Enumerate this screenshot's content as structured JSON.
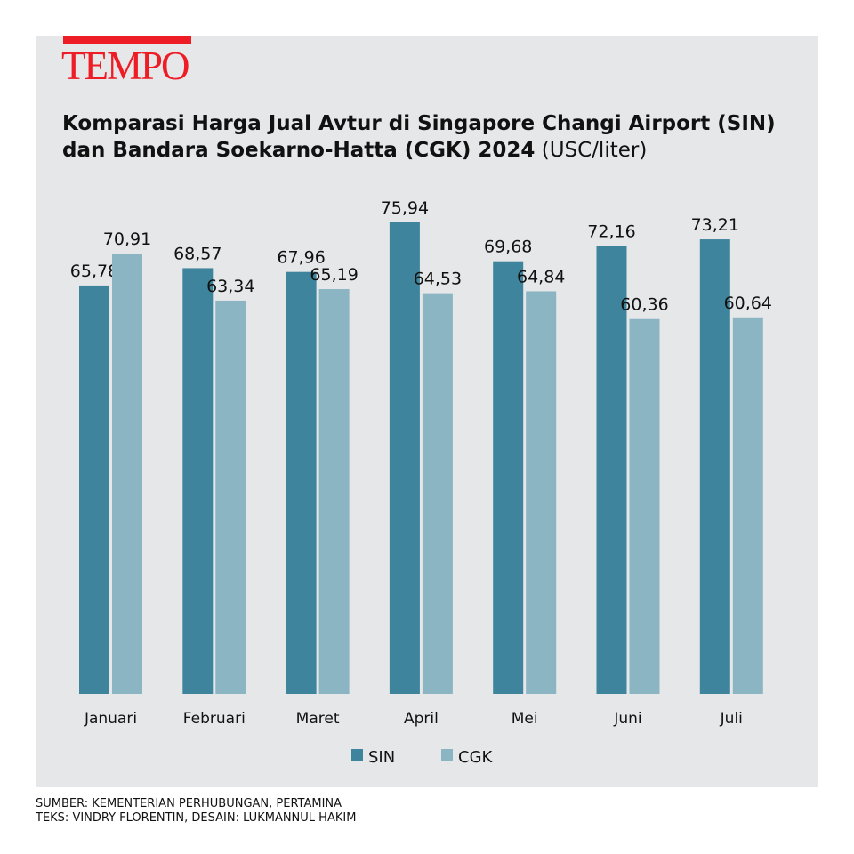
{
  "logo": "TEMPO",
  "title": {
    "main": "Komparasi Harga Jual Avtur di Singapore Changi Airport (SIN) dan Bandara Soekarno-Hatta (CGK) 2024",
    "unit": "(USC/liter)"
  },
  "chart_data": {
    "type": "bar",
    "title": "Komparasi Harga Jual Avtur di Singapore Changi Airport (SIN) dan Bandara Soekarno-Hatta (CGK) 2024 (USC/liter)",
    "categories": [
      "Januari",
      "Februari",
      "Maret",
      "April",
      "Mei",
      "Juni",
      "Juli"
    ],
    "series": [
      {
        "name": "SIN",
        "color": "#3e849c",
        "values": [
          65.78,
          68.57,
          67.96,
          75.94,
          69.68,
          72.16,
          73.21
        ],
        "labels": [
          "65,78",
          "68,57",
          "67,96",
          "75,94",
          "69,68",
          "72,16",
          "73,21"
        ]
      },
      {
        "name": "CGK",
        "color": "#8cb5c3",
        "values": [
          70.91,
          63.34,
          65.19,
          64.53,
          64.84,
          60.36,
          60.64
        ],
        "labels": [
          "70,91",
          "63,34",
          "65,19",
          "64,53",
          "64,84",
          "60,36",
          "60,64"
        ]
      }
    ],
    "ylim": [
      0,
      80
    ],
    "grid": false,
    "legend": "bottom-center",
    "xlabel": "",
    "ylabel": ""
  },
  "footer": {
    "source": "SUMBER: KEMENTERIAN PERHUBUNGAN, PERTAMINA",
    "credits": "TEKS: VINDRY FLORENTIN, DESAIN: LUKMANNUL HAKIM"
  }
}
